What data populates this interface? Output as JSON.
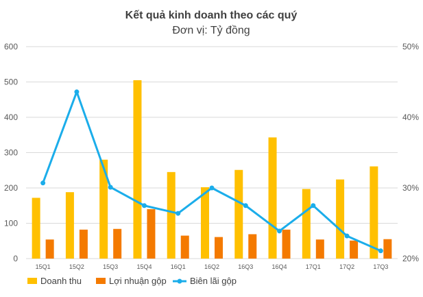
{
  "chart_data": {
    "type": "bar",
    "title": "Kết quả kinh doanh theo các quý",
    "subtitle": "Đơn vị: Tỷ đồng",
    "categories": [
      "15Q1",
      "15Q2",
      "15Q3",
      "15Q4",
      "16Q1",
      "16Q2",
      "16Q3",
      "16Q4",
      "17Q1",
      "17Q2",
      "17Q3"
    ],
    "series": [
      {
        "name": "Doanh thu",
        "type": "bar",
        "axis": "left",
        "color": "#FFC000",
        "values": [
          172,
          188,
          280,
          505,
          245,
          202,
          251,
          343,
          197,
          224,
          261
        ]
      },
      {
        "name": "Lợi nhuận gộp",
        "type": "bar",
        "axis": "left",
        "color": "#F47A00",
        "values": [
          54,
          82,
          84,
          140,
          65,
          61,
          69,
          82,
          54,
          51,
          55
        ]
      },
      {
        "name": "Biên lãi gộp",
        "type": "line",
        "axis": "right",
        "color": "#1BADEA",
        "values": [
          0.307,
          0.436,
          0.301,
          0.275,
          0.264,
          0.3,
          0.275,
          0.239,
          0.275,
          0.232,
          0.211
        ]
      }
    ],
    "y_left": {
      "min": 0,
      "max": 600,
      "ticks": [
        "0",
        "100",
        "200",
        "300",
        "400",
        "500",
        "600"
      ]
    },
    "y_right": {
      "min": 0.2,
      "max": 0.5,
      "ticks": [
        "20%",
        "30%",
        "40%",
        "50%"
      ]
    },
    "grid": true,
    "legend": "bottom-left"
  }
}
